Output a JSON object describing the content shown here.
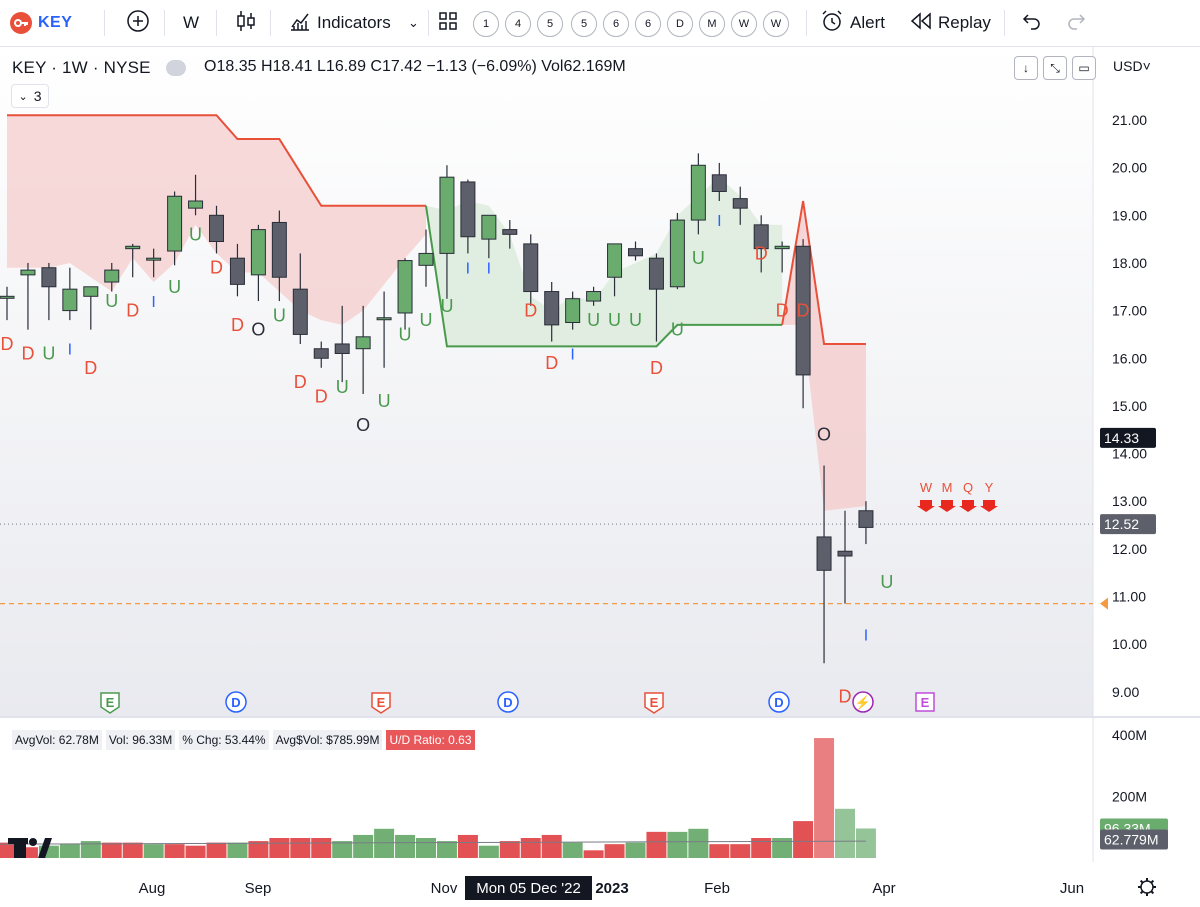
{
  "toolbar": {
    "logo_text": "KEY",
    "interval": "W",
    "indicators_label": "Indicators",
    "interval_buttons": [
      "1",
      "4",
      "5",
      "5",
      "6",
      "6",
      "D",
      "M",
      "W",
      "W"
    ],
    "alert_label": "Alert",
    "replay_label": "Replay"
  },
  "legend": {
    "symbol": "KEY · 1W · NYSE",
    "o_label": "O",
    "o": "18.35",
    "h_label": "H",
    "h": "18.41",
    "l_label": "L",
    "l": "16.89",
    "c_label": "C",
    "c": "17.42",
    "change": "−1.13 (−6.09%)",
    "vol_label": "Vol",
    "vol": "62.169M",
    "study_count": "3",
    "currency": "USD"
  },
  "stats": {
    "avgvol": "AvgVol: 62.78M",
    "vol": "Vol: 96.33M",
    "pct_chg": "% Chg: 53.44%",
    "avg_dollar_vol": "Avg$Vol: $785.99M",
    "ud_ratio": "U/D Ratio: 0.63"
  },
  "colors": {
    "up": "#6aab6e",
    "down": "#5d606b",
    "accent_red": "#e8503a",
    "accent_green": "#4a9a4e",
    "vol_up": "#6aab6e",
    "vol_down": "#e0484a"
  },
  "chart_data": {
    "type": "candlestick",
    "price_axis": {
      "ticks": [
        "21.00",
        "20.00",
        "19.00",
        "18.00",
        "17.00",
        "16.00",
        "15.00",
        "14.00",
        "13.00",
        "12.00",
        "11.00",
        "10.00",
        "9.00"
      ],
      "range": [
        8.7,
        21.4
      ]
    },
    "price_labels": {
      "current_alt": "14.33",
      "last": "12.52"
    },
    "volume_axis": {
      "ticks": [
        "400M",
        "200M"
      ],
      "labels": {
        "vol": "96.33M",
        "avg": "62.779M"
      }
    },
    "x_axis": {
      "ticks": [
        "Aug",
        "Sep",
        "Nov",
        "2023",
        "Feb",
        "Apr",
        "Jun"
      ],
      "crosshair_label": "Mon 05 Dec '22"
    },
    "candles": [
      {
        "o": 17.3,
        "h": 17.5,
        "l": 16.8,
        "c": 17.3
      },
      {
        "o": 17.75,
        "h": 18.0,
        "l": 16.6,
        "c": 17.85
      },
      {
        "o": 17.9,
        "h": 18.0,
        "l": 16.8,
        "c": 17.5
      },
      {
        "o": 17.0,
        "h": 17.9,
        "l": 16.8,
        "c": 17.45
      },
      {
        "o": 17.3,
        "h": 17.5,
        "l": 16.6,
        "c": 17.5
      },
      {
        "o": 17.6,
        "h": 18.0,
        "l": 17.4,
        "c": 17.85
      },
      {
        "o": 18.3,
        "h": 18.4,
        "l": 17.7,
        "c": 18.35
      },
      {
        "o": 18.1,
        "h": 18.3,
        "l": 17.7,
        "c": 18.1
      },
      {
        "o": 18.25,
        "h": 19.5,
        "l": 17.95,
        "c": 19.4
      },
      {
        "o": 19.15,
        "h": 19.85,
        "l": 19.0,
        "c": 19.3
      },
      {
        "o": 19.0,
        "h": 19.2,
        "l": 18.2,
        "c": 18.45
      },
      {
        "o": 18.1,
        "h": 18.4,
        "l": 17.3,
        "c": 17.55
      },
      {
        "o": 17.75,
        "h": 18.8,
        "l": 17.2,
        "c": 18.7
      },
      {
        "o": 18.85,
        "h": 19.1,
        "l": 17.2,
        "c": 17.7
      },
      {
        "o": 17.45,
        "h": 18.2,
        "l": 16.3,
        "c": 16.5
      },
      {
        "o": 16.2,
        "h": 16.35,
        "l": 15.8,
        "c": 16.0
      },
      {
        "o": 16.3,
        "h": 17.1,
        "l": 15.5,
        "c": 16.1
      },
      {
        "o": 16.2,
        "h": 17.1,
        "l": 15.25,
        "c": 16.45
      },
      {
        "o": 16.85,
        "h": 17.4,
        "l": 15.8,
        "c": 16.85
      },
      {
        "o": 16.95,
        "h": 18.1,
        "l": 16.6,
        "c": 18.05
      },
      {
        "o": 17.95,
        "h": 18.7,
        "l": 17.5,
        "c": 18.2
      },
      {
        "o": 18.2,
        "h": 20.05,
        "l": 17.25,
        "c": 19.8
      },
      {
        "o": 19.7,
        "h": 19.75,
        "l": 18.2,
        "c": 18.55
      },
      {
        "o": 18.5,
        "h": 19.0,
        "l": 18.1,
        "c": 19.0
      },
      {
        "o": 18.7,
        "h": 18.9,
        "l": 18.3,
        "c": 18.6
      },
      {
        "o": 18.4,
        "h": 18.6,
        "l": 17.1,
        "c": 17.4
      },
      {
        "o": 17.4,
        "h": 17.6,
        "l": 16.35,
        "c": 16.7
      },
      {
        "o": 16.75,
        "h": 17.4,
        "l": 16.6,
        "c": 17.25
      },
      {
        "o": 17.2,
        "h": 17.5,
        "l": 17.1,
        "c": 17.4
      },
      {
        "o": 17.7,
        "h": 18.4,
        "l": 17.3,
        "c": 18.4
      },
      {
        "o": 18.3,
        "h": 18.45,
        "l": 18.05,
        "c": 18.15
      },
      {
        "o": 18.1,
        "h": 18.2,
        "l": 16.35,
        "c": 17.45
      },
      {
        "o": 17.5,
        "h": 19.05,
        "l": 17.45,
        "c": 18.9
      },
      {
        "o": 18.9,
        "h": 20.3,
        "l": 18.6,
        "c": 20.05
      },
      {
        "o": 19.85,
        "h": 20.1,
        "l": 19.3,
        "c": 19.5
      },
      {
        "o": 19.35,
        "h": 19.6,
        "l": 18.8,
        "c": 19.15
      },
      {
        "o": 18.8,
        "h": 19.0,
        "l": 17.8,
        "c": 18.3
      },
      {
        "o": 18.3,
        "h": 18.45,
        "l": 17.8,
        "c": 18.35
      },
      {
        "o": 18.35,
        "h": 18.5,
        "l": 14.95,
        "c": 15.65
      },
      {
        "o": 12.25,
        "h": 13.75,
        "l": 9.6,
        "c": 11.55
      },
      {
        "o": 11.95,
        "h": 12.8,
        "l": 10.85,
        "c": 11.85
      },
      {
        "o": 12.8,
        "h": 13.0,
        "l": 12.1,
        "c": 12.45
      }
    ],
    "volume": [
      {
        "v": 50,
        "up": false
      },
      {
        "v": 35,
        "up": false
      },
      {
        "v": 40,
        "up": true
      },
      {
        "v": 45,
        "up": true
      },
      {
        "v": 55,
        "up": true
      },
      {
        "v": 50,
        "up": false
      },
      {
        "v": 50,
        "up": false
      },
      {
        "v": 45,
        "up": true
      },
      {
        "v": 45,
        "up": false
      },
      {
        "v": 40,
        "up": false
      },
      {
        "v": 50,
        "up": false
      },
      {
        "v": 50,
        "up": true
      },
      {
        "v": 55,
        "up": false
      },
      {
        "v": 65,
        "up": false
      },
      {
        "v": 65,
        "up": false
      },
      {
        "v": 65,
        "up": false
      },
      {
        "v": 55,
        "up": true
      },
      {
        "v": 75,
        "up": true
      },
      {
        "v": 95,
        "up": true
      },
      {
        "v": 75,
        "up": true
      },
      {
        "v": 65,
        "up": true
      },
      {
        "v": 55,
        "up": true
      },
      {
        "v": 75,
        "up": false
      },
      {
        "v": 40,
        "up": true
      },
      {
        "v": 55,
        "up": false
      },
      {
        "v": 65,
        "up": false
      },
      {
        "v": 75,
        "up": false
      },
      {
        "v": 50,
        "up": true
      },
      {
        "v": 25,
        "up": false
      },
      {
        "v": 45,
        "up": false
      },
      {
        "v": 50,
        "up": true
      },
      {
        "v": 85,
        "up": false
      },
      {
        "v": 85,
        "up": true
      },
      {
        "v": 95,
        "up": true
      },
      {
        "v": 45,
        "up": false
      },
      {
        "v": 45,
        "up": false
      },
      {
        "v": 65,
        "up": false
      },
      {
        "v": 65,
        "up": true
      },
      {
        "v": 120,
        "up": false
      },
      {
        "v": 390,
        "up": false
      },
      {
        "v": 160,
        "up": true
      },
      {
        "v": 96,
        "up": true
      }
    ],
    "avg_volume_line": 62.78,
    "markers": {
      "letters": [
        {
          "t": "D",
          "i": 0,
          "p": 16.3,
          "c": "red"
        },
        {
          "t": "D",
          "i": 1,
          "p": 16.1,
          "c": "red"
        },
        {
          "t": "U",
          "i": 2,
          "p": 16.1,
          "c": "green"
        },
        {
          "t": "I",
          "i": 3,
          "p": 16.2,
          "c": "blue"
        },
        {
          "t": "D",
          "i": 4,
          "p": 15.8,
          "c": "red"
        },
        {
          "t": "U",
          "i": 5,
          "p": 17.2,
          "c": "green"
        },
        {
          "t": "D",
          "i": 6,
          "p": 17.0,
          "c": "red"
        },
        {
          "t": "I",
          "i": 7,
          "p": 17.2,
          "c": "blue"
        },
        {
          "t": "U",
          "i": 8,
          "p": 17.5,
          "c": "green"
        },
        {
          "t": "U",
          "i": 9,
          "p": 18.6,
          "c": "green"
        },
        {
          "t": "D",
          "i": 10,
          "p": 17.9,
          "c": "red"
        },
        {
          "t": "D",
          "i": 11,
          "p": 16.7,
          "c": "red"
        },
        {
          "t": "O",
          "i": 12,
          "p": 16.6,
          "c": "dark"
        },
        {
          "t": "U",
          "i": 13,
          "p": 16.9,
          "c": "green"
        },
        {
          "t": "D",
          "i": 14,
          "p": 15.5,
          "c": "red"
        },
        {
          "t": "D",
          "i": 15,
          "p": 15.2,
          "c": "red"
        },
        {
          "t": "U",
          "i": 16,
          "p": 15.4,
          "c": "green"
        },
        {
          "t": "O",
          "i": 17,
          "p": 14.6,
          "c": "dark"
        },
        {
          "t": "U",
          "i": 18,
          "p": 15.1,
          "c": "green"
        },
        {
          "t": "U",
          "i": 19,
          "p": 16.5,
          "c": "green"
        },
        {
          "t": "U",
          "i": 20,
          "p": 16.8,
          "c": "green"
        },
        {
          "t": "U",
          "i": 21,
          "p": 17.1,
          "c": "green"
        },
        {
          "t": "I",
          "i": 22,
          "p": 17.9,
          "c": "blue"
        },
        {
          "t": "I",
          "i": 23,
          "p": 17.9,
          "c": "blue"
        },
        {
          "t": "D",
          "i": 25,
          "p": 17.0,
          "c": "red"
        },
        {
          "t": "D",
          "i": 26,
          "p": 15.9,
          "c": "red"
        },
        {
          "t": "I",
          "i": 27,
          "p": 16.1,
          "c": "blue"
        },
        {
          "t": "U",
          "i": 28,
          "p": 16.8,
          "c": "green"
        },
        {
          "t": "U",
          "i": 29,
          "p": 16.8,
          "c": "green"
        },
        {
          "t": "U",
          "i": 30,
          "p": 16.8,
          "c": "green"
        },
        {
          "t": "D",
          "i": 31,
          "p": 15.8,
          "c": "red"
        },
        {
          "t": "U",
          "i": 32,
          "p": 16.6,
          "c": "green"
        },
        {
          "t": "U",
          "i": 33,
          "p": 18.1,
          "c": "green"
        },
        {
          "t": "I",
          "i": 34,
          "p": 18.9,
          "c": "blue"
        },
        {
          "t": "D",
          "i": 36,
          "p": 18.2,
          "c": "red"
        },
        {
          "t": "D",
          "i": 37,
          "p": 17.0,
          "c": "red"
        },
        {
          "t": "D",
          "i": 38,
          "p": 17.0,
          "c": "red"
        },
        {
          "t": "O",
          "i": 39,
          "p": 14.4,
          "c": "dark"
        },
        {
          "t": "D",
          "i": 40,
          "p": 8.9,
          "c": "red"
        },
        {
          "t": "I",
          "i": 41,
          "p": 10.2,
          "c": "blue"
        },
        {
          "t": "U",
          "i": 42,
          "p": 11.3,
          "c": "green"
        }
      ],
      "period_arrows": [
        "W",
        "M",
        "Q",
        "Y"
      ],
      "events": [
        {
          "t": "E",
          "kind": "earn-green"
        },
        {
          "t": "D",
          "kind": "div"
        },
        {
          "t": "E",
          "kind": "earn-red"
        },
        {
          "t": "D",
          "kind": "div"
        },
        {
          "t": "E",
          "kind": "earn-red"
        },
        {
          "t": "D",
          "kind": "div"
        },
        {
          "t": "⚡",
          "kind": "split"
        },
        {
          "t": "E",
          "kind": "earn-purple"
        }
      ]
    }
  }
}
